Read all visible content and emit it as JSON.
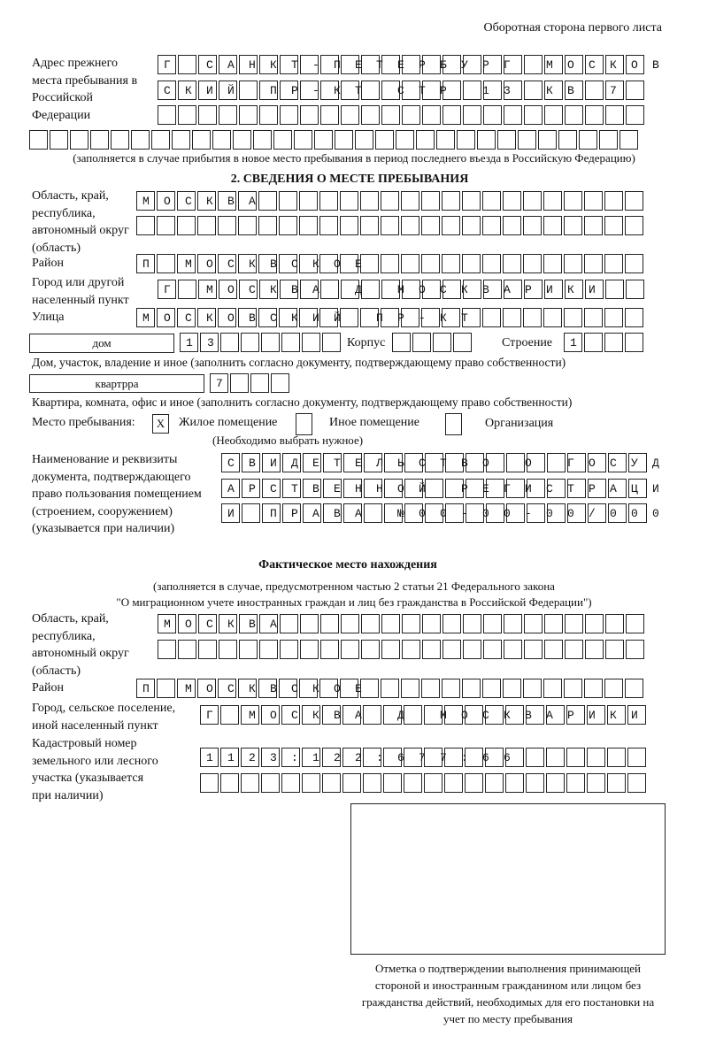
{
  "header": "Оборотная сторона первого листа",
  "previous_address": {
    "label": "Адрес прежнего места пребывания в Российской Федерации",
    "rows": [
      "Г САНКТ-ПЕТЕРБУРГ МОСКОВ",
      "СКИЙ ПР-КТ СТР 13 КВ 7  ",
      "                        ",
      "                              "
    ],
    "note": "(заполняется в случае прибытия в новое место пребывания в период последнего въезда в Российскую Федерацию)"
  },
  "section2": {
    "title": "2. СВЕДЕНИЯ О МЕСТЕ ПРЕБЫВАНИЯ",
    "region_label": "Область, край, республика, автономный округ (область)",
    "region_rows": [
      "МОСКВА                   ",
      "                         "
    ],
    "district_label": "Район",
    "district": "П МОСКВСКОЕ              ",
    "city_label": "Город или другой населенный пункт",
    "city": "Г МОСКВА Д МОСКВАРИКИ   ",
    "street_label": "Улица",
    "street": "МОСКОВСКИЙ ПР-КТ         ",
    "house_type": "дом",
    "house_number": "13      ",
    "korpus_label": "Корпус",
    "korpus": "    ",
    "building_label": "Строение",
    "building": "1   ",
    "house_note": "Дом, участок, владение и иное (заполнить согласно документу, подтверждающему право собственности)",
    "apartment_type": "квартрра",
    "apartment_number": "7   ",
    "apartment_note": "Квартира, комната, офис и иное (заполнить согласно документу, подтверждающему право собственности)",
    "stay_place_label": "Место пребывания:",
    "options": [
      {
        "label": "Жилое помещение",
        "mark": "X"
      },
      {
        "label": "Иное помещение",
        "mark": ""
      },
      {
        "label": "Организация",
        "mark": ""
      }
    ],
    "options_note": "(Необходимо выбрать нужное)",
    "document_label": "Наименование и реквизиты документа, подтверждающего право пользования помещением (строением, сооружением) (указывается при наличии)",
    "document_rows": [
      "СВИДЕТЕЛЬСТВО О ГОСУД",
      "АРСТВЕННОЙ РЕГИСТРАЦИ",
      "И ПРАВА №00-00-00/000"
    ]
  },
  "actual": {
    "title": "Фактическое место нахождения",
    "note_line1": "(заполняется в случае, предусмотренном частью 2 статьи 21 Федерального закона",
    "note_line2": "\"О миграционном учете иностранных граждан и лиц без гражданства в Российской Федерации\")",
    "region_label": "Область, край, республика, автономный округ (область)",
    "region_rows": [
      "МОСКВА                  ",
      "                        "
    ],
    "district_label": "Район",
    "district": "П МОСКВСКОЕ              ",
    "city_label": "Город, сельское поселение, иной населенный пункт",
    "city": "Г МОСКВА Д МОСКВАРИКИ ",
    "cadastral_label": "Кадастровый номер земельного или лесного участка (указывается при наличии)",
    "cadastral_rows": [
      "1123:122:677:66       ",
      "                      "
    ]
  },
  "confirmation_caption": "Отметка о подтверждении выполнения принимающей стороной и иностранным гражданином или лицом без гражданства действий, необходимых для его постановки на учет по месту пребывания"
}
